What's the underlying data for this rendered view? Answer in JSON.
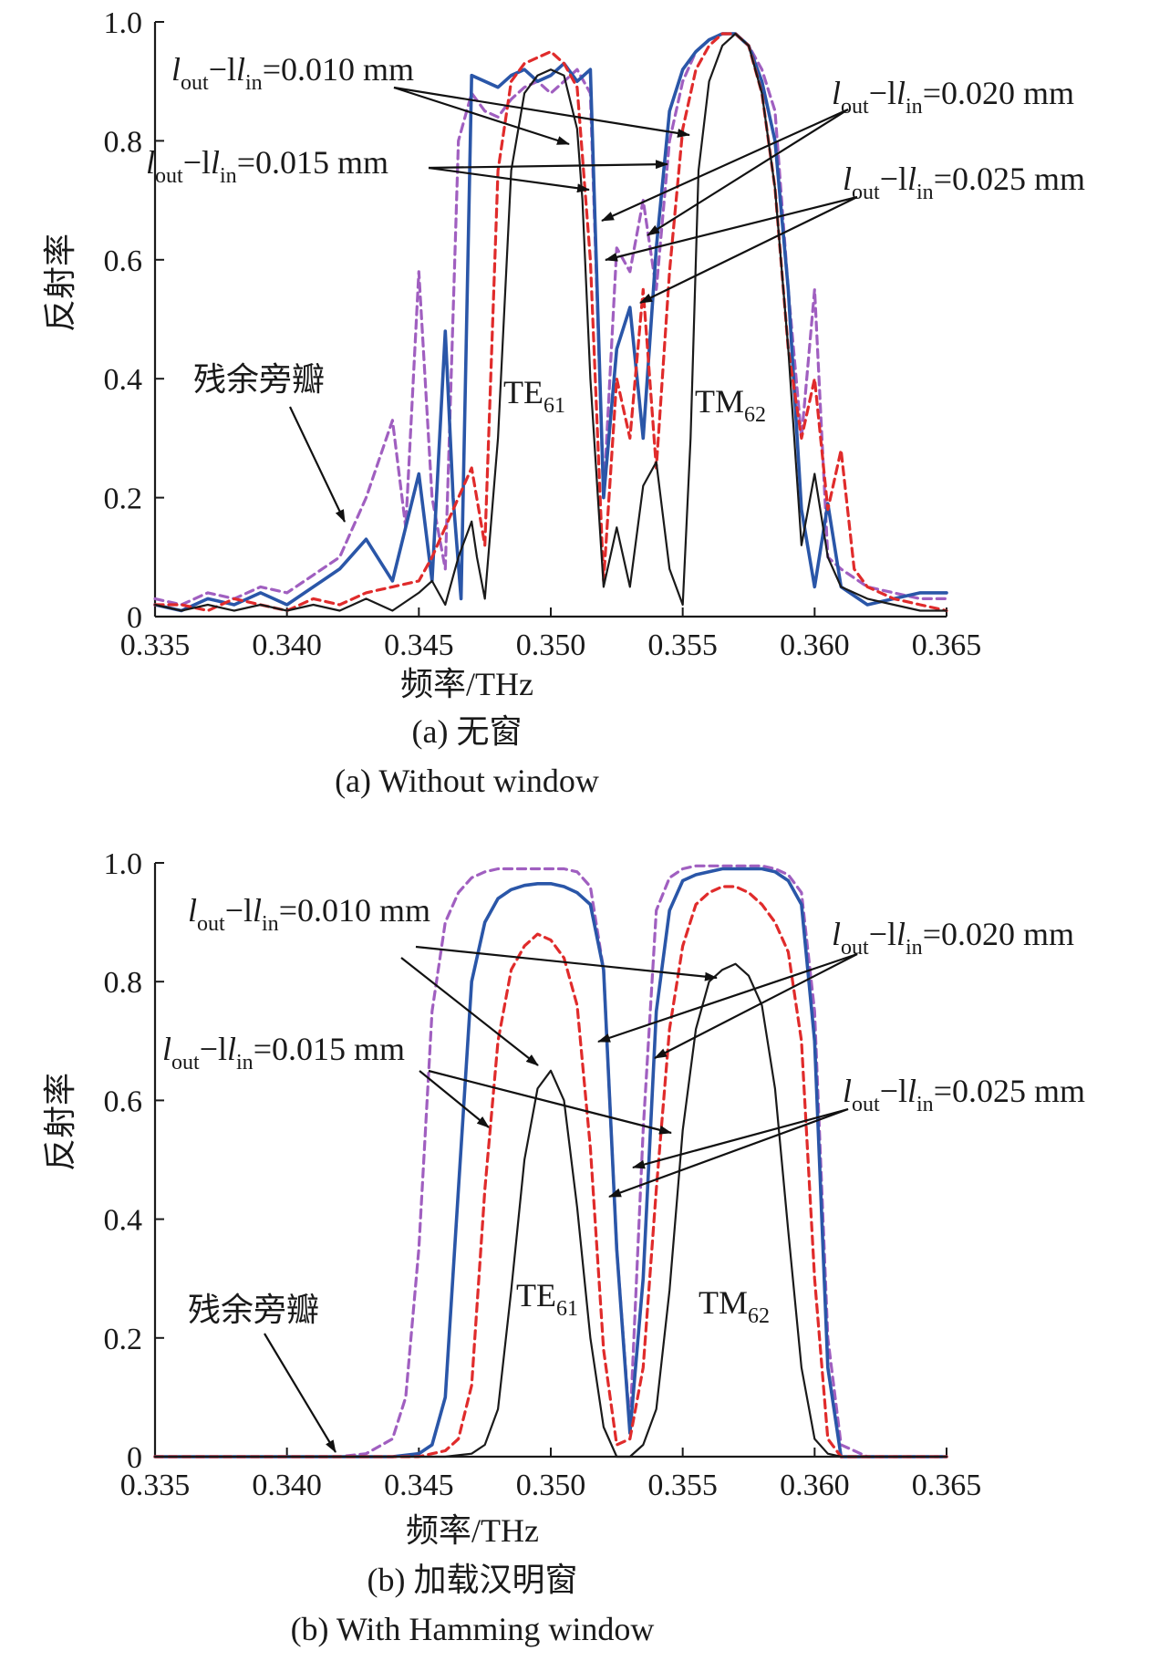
{
  "colors": {
    "s010": "#1a1a1a",
    "s015": "#e02b2b",
    "s020": "#2a56a8",
    "s025": "#a05fc0"
  },
  "series_styles": {
    "s010": {
      "dash": "none",
      "width": 2.2
    },
    "s015": {
      "dash": "9,6",
      "width": 3.2
    },
    "s020": {
      "dash": "none",
      "width": 3.6
    },
    "s025": {
      "dash": "9,6",
      "width": 3.2
    }
  },
  "chart_data": [
    {
      "type": "line",
      "panel": "a",
      "caption_cn": "(a) 无窗",
      "caption_en": "(a) Without window",
      "ylabel": "反射率",
      "xlabel": "频率/THz",
      "xlim": [
        0.335,
        0.365
      ],
      "ylim": [
        0,
        1.0
      ],
      "xticks": [
        "0.335",
        "0.340",
        "0.345",
        "0.350",
        "0.355",
        "0.360",
        "0.365"
      ],
      "xtick_values": [
        0.335,
        0.34,
        0.345,
        0.35,
        0.355,
        0.36,
        0.365
      ],
      "yticks": [
        "0",
        "0.2",
        "0.4",
        "0.6",
        "0.8",
        "1.0"
      ],
      "ytick_values": [
        0,
        0.2,
        0.4,
        0.6,
        0.8,
        1.0
      ],
      "annotations": {
        "l010": {
          "main": "l",
          "sub1": "out",
          "mid": "−l",
          "sub2": "in",
          "end": "=0.010 mm"
        },
        "l015": {
          "main": "l",
          "sub1": "out",
          "mid": "−l",
          "sub2": "in",
          "end": "=0.015 mm"
        },
        "l020": {
          "main": "l",
          "sub1": "out",
          "mid": "−l",
          "sub2": "in",
          "end": "=0.020 mm"
        },
        "l025": {
          "main": "l",
          "sub1": "out",
          "mid": "−l",
          "sub2": "in",
          "end": "=0.025 mm"
        },
        "sidelobe": "残余旁瓣",
        "te": {
          "base": "TE",
          "sub": "61"
        },
        "tm": {
          "base": "TM",
          "sub": "62"
        }
      },
      "series": [
        {
          "key": "s010",
          "x": [
            0.335,
            0.336,
            0.337,
            0.338,
            0.339,
            0.34,
            0.341,
            0.342,
            0.343,
            0.344,
            0.345,
            0.3455,
            0.346,
            0.3465,
            0.347,
            0.3472,
            0.3475,
            0.348,
            0.3485,
            0.349,
            0.3495,
            0.35,
            0.3505,
            0.351,
            0.3512,
            0.3515,
            0.352,
            0.3525,
            0.353,
            0.3535,
            0.354,
            0.3545,
            0.355,
            0.3553,
            0.3556,
            0.356,
            0.3565,
            0.357,
            0.3575,
            0.358,
            0.3585,
            0.359,
            0.3595,
            0.36,
            0.3605,
            0.361,
            0.362,
            0.363,
            0.364,
            0.365
          ],
          "y": [
            0.02,
            0.01,
            0.02,
            0.01,
            0.02,
            0.01,
            0.02,
            0.01,
            0.03,
            0.01,
            0.04,
            0.06,
            0.02,
            0.1,
            0.16,
            0.1,
            0.03,
            0.3,
            0.75,
            0.88,
            0.91,
            0.92,
            0.91,
            0.82,
            0.7,
            0.4,
            0.05,
            0.15,
            0.05,
            0.22,
            0.26,
            0.08,
            0.02,
            0.3,
            0.75,
            0.9,
            0.96,
            0.98,
            0.96,
            0.88,
            0.72,
            0.45,
            0.12,
            0.24,
            0.1,
            0.05,
            0.03,
            0.02,
            0.01,
            0.01
          ]
        },
        {
          "key": "s015",
          "x": [
            0.335,
            0.336,
            0.337,
            0.338,
            0.339,
            0.34,
            0.341,
            0.342,
            0.343,
            0.344,
            0.345,
            0.3455,
            0.346,
            0.3465,
            0.347,
            0.3475,
            0.348,
            0.3485,
            0.349,
            0.3495,
            0.35,
            0.3505,
            0.351,
            0.3515,
            0.352,
            0.3525,
            0.353,
            0.3535,
            0.354,
            0.3545,
            0.355,
            0.3555,
            0.356,
            0.3565,
            0.357,
            0.3575,
            0.358,
            0.3585,
            0.359,
            0.3595,
            0.36,
            0.3605,
            0.361,
            0.3615,
            0.362,
            0.363,
            0.364,
            0.365
          ],
          "y": [
            0.02,
            0.02,
            0.01,
            0.03,
            0.02,
            0.01,
            0.03,
            0.02,
            0.04,
            0.05,
            0.06,
            0.1,
            0.15,
            0.2,
            0.25,
            0.12,
            0.75,
            0.9,
            0.93,
            0.94,
            0.95,
            0.93,
            0.89,
            0.6,
            0.06,
            0.4,
            0.3,
            0.55,
            0.25,
            0.58,
            0.82,
            0.92,
            0.96,
            0.98,
            0.98,
            0.96,
            0.88,
            0.72,
            0.45,
            0.3,
            0.4,
            0.18,
            0.28,
            0.08,
            0.05,
            0.03,
            0.02,
            0.01
          ]
        },
        {
          "key": "s020",
          "x": [
            0.335,
            0.336,
            0.337,
            0.338,
            0.339,
            0.34,
            0.341,
            0.342,
            0.343,
            0.344,
            0.345,
            0.3455,
            0.346,
            0.3463,
            0.3466,
            0.347,
            0.3475,
            0.348,
            0.3485,
            0.349,
            0.3495,
            0.35,
            0.3505,
            0.351,
            0.3515,
            0.352,
            0.3525,
            0.353,
            0.3535,
            0.354,
            0.3545,
            0.355,
            0.3555,
            0.356,
            0.3565,
            0.357,
            0.3575,
            0.358,
            0.3585,
            0.359,
            0.3595,
            0.36,
            0.3605,
            0.361,
            0.362,
            0.363,
            0.364,
            0.365
          ],
          "y": [
            0.02,
            0.01,
            0.03,
            0.02,
            0.04,
            0.02,
            0.05,
            0.08,
            0.13,
            0.06,
            0.24,
            0.06,
            0.48,
            0.2,
            0.03,
            0.91,
            0.9,
            0.89,
            0.91,
            0.92,
            0.9,
            0.91,
            0.93,
            0.9,
            0.92,
            0.2,
            0.45,
            0.52,
            0.3,
            0.62,
            0.85,
            0.92,
            0.95,
            0.97,
            0.98,
            0.98,
            0.96,
            0.9,
            0.8,
            0.55,
            0.18,
            0.05,
            0.19,
            0.05,
            0.02,
            0.03,
            0.04,
            0.04
          ]
        },
        {
          "key": "s025",
          "x": [
            0.335,
            0.336,
            0.337,
            0.338,
            0.339,
            0.34,
            0.341,
            0.342,
            0.343,
            0.344,
            0.3445,
            0.345,
            0.3455,
            0.346,
            0.3465,
            0.347,
            0.3475,
            0.348,
            0.3485,
            0.349,
            0.3495,
            0.35,
            0.3505,
            0.351,
            0.3515,
            0.352,
            0.3525,
            0.353,
            0.3535,
            0.354,
            0.3545,
            0.355,
            0.3555,
            0.356,
            0.3565,
            0.357,
            0.3575,
            0.358,
            0.3585,
            0.359,
            0.3595,
            0.36,
            0.3605,
            0.361,
            0.362,
            0.363,
            0.364,
            0.365
          ],
          "y": [
            0.03,
            0.02,
            0.04,
            0.03,
            0.05,
            0.04,
            0.07,
            0.1,
            0.2,
            0.33,
            0.15,
            0.58,
            0.2,
            0.08,
            0.8,
            0.88,
            0.85,
            0.84,
            0.87,
            0.89,
            0.9,
            0.88,
            0.9,
            0.92,
            0.88,
            0.2,
            0.62,
            0.58,
            0.7,
            0.55,
            0.8,
            0.9,
            0.95,
            0.97,
            0.98,
            0.98,
            0.96,
            0.92,
            0.85,
            0.55,
            0.3,
            0.55,
            0.1,
            0.08,
            0.05,
            0.04,
            0.03,
            0.03
          ]
        }
      ]
    },
    {
      "type": "line",
      "panel": "b",
      "caption_cn": "(b) 加载汉明窗",
      "caption_en": "(b) With Hamming window",
      "ylabel": "反射率",
      "xlabel": "频率/THz",
      "xlim": [
        0.335,
        0.365
      ],
      "ylim": [
        0,
        1.0
      ],
      "xticks": [
        "0.335",
        "0.340",
        "0.345",
        "0.350",
        "0.355",
        "0.360",
        "0.365"
      ],
      "xtick_values": [
        0.335,
        0.34,
        0.345,
        0.35,
        0.355,
        0.36,
        0.365
      ],
      "yticks": [
        "0",
        "0.2",
        "0.4",
        "0.6",
        "0.8",
        "1.0"
      ],
      "ytick_values": [
        0,
        0.2,
        0.4,
        0.6,
        0.8,
        1.0
      ],
      "annotations": {
        "l010": {
          "main": "l",
          "sub1": "out",
          "mid": "−l",
          "sub2": "in",
          "end": "=0.010 mm"
        },
        "l015": {
          "main": "l",
          "sub1": "out",
          "mid": "−l",
          "sub2": "in",
          "end": "=0.015 mm"
        },
        "l020": {
          "main": "l",
          "sub1": "out",
          "mid": "−l",
          "sub2": "in",
          "end": "=0.020 mm"
        },
        "l025": {
          "main": "l",
          "sub1": "out",
          "mid": "−l",
          "sub2": "in",
          "end": "=0.025 mm"
        },
        "sidelobe": "残余旁瓣",
        "te": {
          "base": "TE",
          "sub": "61"
        },
        "tm": {
          "base": "TM",
          "sub": "62"
        }
      },
      "series": [
        {
          "key": "s010",
          "x": [
            0.335,
            0.34,
            0.345,
            0.346,
            0.347,
            0.3475,
            0.348,
            0.3485,
            0.349,
            0.3495,
            0.35,
            0.3505,
            0.351,
            0.3515,
            0.352,
            0.3525,
            0.353,
            0.3535,
            0.354,
            0.3545,
            0.355,
            0.3555,
            0.356,
            0.3565,
            0.357,
            0.3575,
            0.358,
            0.3585,
            0.359,
            0.3595,
            0.36,
            0.3605,
            0.361,
            0.365
          ],
          "y": [
            0,
            0,
            0,
            0,
            0.005,
            0.02,
            0.08,
            0.28,
            0.5,
            0.62,
            0.65,
            0.6,
            0.42,
            0.2,
            0.05,
            0.0,
            0.0,
            0.02,
            0.08,
            0.28,
            0.55,
            0.72,
            0.8,
            0.82,
            0.83,
            0.81,
            0.76,
            0.62,
            0.38,
            0.15,
            0.03,
            0.005,
            0,
            0
          ]
        },
        {
          "key": "s015",
          "x": [
            0.335,
            0.34,
            0.345,
            0.3455,
            0.346,
            0.3465,
            0.347,
            0.3475,
            0.348,
            0.3485,
            0.349,
            0.3495,
            0.35,
            0.3505,
            0.351,
            0.3515,
            0.352,
            0.3525,
            0.353,
            0.3535,
            0.354,
            0.3545,
            0.355,
            0.3555,
            0.356,
            0.3565,
            0.357,
            0.3575,
            0.358,
            0.3585,
            0.359,
            0.3595,
            0.36,
            0.3605,
            0.361,
            0.365
          ],
          "y": [
            0,
            0,
            0,
            0.005,
            0.01,
            0.03,
            0.12,
            0.45,
            0.7,
            0.82,
            0.86,
            0.88,
            0.87,
            0.84,
            0.76,
            0.52,
            0.18,
            0.02,
            0.03,
            0.15,
            0.45,
            0.72,
            0.86,
            0.93,
            0.95,
            0.96,
            0.96,
            0.95,
            0.93,
            0.9,
            0.85,
            0.7,
            0.3,
            0.03,
            0,
            0
          ]
        },
        {
          "key": "s020",
          "x": [
            0.335,
            0.34,
            0.344,
            0.345,
            0.3455,
            0.346,
            0.3465,
            0.347,
            0.3475,
            0.348,
            0.3485,
            0.349,
            0.3495,
            0.35,
            0.3505,
            0.351,
            0.3515,
            0.352,
            0.3525,
            0.353,
            0.3535,
            0.354,
            0.3545,
            0.355,
            0.3555,
            0.356,
            0.3565,
            0.357,
            0.3575,
            0.358,
            0.3585,
            0.359,
            0.3595,
            0.36,
            0.3605,
            0.361,
            0.365
          ],
          "y": [
            0,
            0,
            0,
            0.005,
            0.02,
            0.1,
            0.45,
            0.8,
            0.9,
            0.94,
            0.955,
            0.962,
            0.965,
            0.965,
            0.96,
            0.95,
            0.93,
            0.82,
            0.35,
            0.04,
            0.3,
            0.75,
            0.92,
            0.97,
            0.98,
            0.985,
            0.99,
            0.99,
            0.99,
            0.99,
            0.985,
            0.97,
            0.93,
            0.7,
            0.15,
            0,
            0
          ]
        },
        {
          "key": "s025",
          "x": [
            0.335,
            0.34,
            0.342,
            0.343,
            0.344,
            0.3445,
            0.345,
            0.3455,
            0.346,
            0.3465,
            0.347,
            0.3475,
            0.348,
            0.3485,
            0.349,
            0.3495,
            0.35,
            0.3505,
            0.351,
            0.3515,
            0.352,
            0.3525,
            0.353,
            0.3535,
            0.354,
            0.3545,
            0.355,
            0.3555,
            0.356,
            0.3565,
            0.357,
            0.3575,
            0.358,
            0.3585,
            0.359,
            0.3595,
            0.36,
            0.3605,
            0.361,
            0.362,
            0.365
          ],
          "y": [
            0,
            0,
            0,
            0.005,
            0.03,
            0.1,
            0.35,
            0.75,
            0.9,
            0.95,
            0.975,
            0.985,
            0.99,
            0.99,
            0.99,
            0.99,
            0.99,
            0.99,
            0.985,
            0.96,
            0.82,
            0.35,
            0.05,
            0.55,
            0.92,
            0.975,
            0.99,
            0.995,
            0.995,
            0.995,
            0.995,
            0.995,
            0.995,
            0.99,
            0.98,
            0.95,
            0.75,
            0.2,
            0.02,
            0,
            0
          ]
        }
      ]
    }
  ]
}
